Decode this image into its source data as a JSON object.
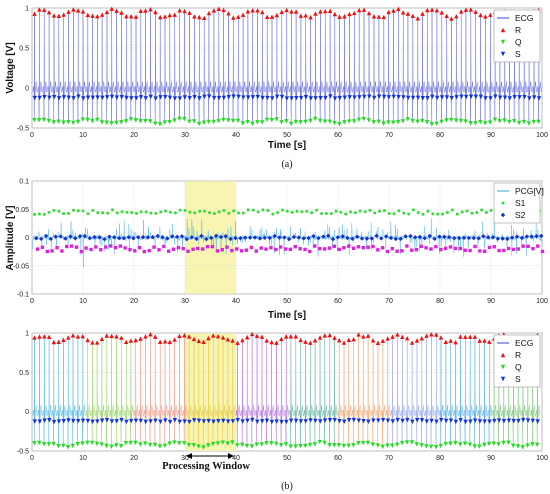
{
  "chart_data": [
    {
      "type": "line",
      "caption": "(a)",
      "xlabel": "Time [s]",
      "ylabel": "Voltage [V]",
      "xlim": [
        0,
        100
      ],
      "ylim": [
        -0.5,
        1
      ],
      "xticks": [
        "0",
        "10",
        "20",
        "30",
        "40",
        "50",
        "60",
        "70",
        "80",
        "90",
        "100"
      ],
      "yticks": [
        "-0.5",
        "0",
        "0.5",
        "1"
      ],
      "grid": true,
      "legend_position": "top-right",
      "beat_period_s": 0.95,
      "series": [
        {
          "name": "ECG",
          "kind": "line",
          "color": "#5b63d9"
        },
        {
          "name": "R",
          "kind": "markers",
          "marker": "triangle-up",
          "color": "#ee1111",
          "value": 0.93
        },
        {
          "name": "Q",
          "kind": "markers",
          "marker": "triangle-down",
          "color": "#22dd22",
          "value": -0.42
        },
        {
          "name": "S",
          "kind": "markers",
          "marker": "triangle-down",
          "color": "#1133dd",
          "value": -0.12
        }
      ]
    },
    {
      "type": "line",
      "xlabel": "Time [s]",
      "ylabel": "Amplitude [V]",
      "xlim": [
        0,
        100
      ],
      "ylim": [
        -0.1,
        0.1
      ],
      "xticks": [
        "0",
        "10",
        "20",
        "30",
        "40",
        "50",
        "60",
        "70",
        "80",
        "90",
        "100"
      ],
      "yticks": [
        "-0.1",
        "-0.05",
        "0",
        "0.05",
        "0.1"
      ],
      "grid": true,
      "legend_position": "top-right",
      "highlight_window": [
        30,
        40
      ],
      "series": [
        {
          "name": "PCG[V]",
          "kind": "line",
          "color": "#5ab4e6"
        },
        {
          "name": "S1",
          "kind": "markers",
          "marker": "circle",
          "color": "#33dd33",
          "value": 0.045
        },
        {
          "name": "S2",
          "kind": "markers",
          "marker": "diamond",
          "color": "#1133cc",
          "value": 0.0
        },
        {
          "name": "",
          "kind": "markers",
          "marker": "square",
          "color": "#dd22dd",
          "value": -0.02
        }
      ]
    },
    {
      "type": "line",
      "caption": "(b)",
      "xlabel": "Time [s]",
      "ylabel": "Voltage [V]",
      "xlim": [
        0,
        100
      ],
      "ylim": [
        -0.5,
        1
      ],
      "xticks": [
        "0",
        "10",
        "20",
        "30",
        "40",
        "50",
        "60",
        "70",
        "80",
        "90",
        "100"
      ],
      "yticks": [
        "-0.5",
        "0",
        "0.5",
        "1"
      ],
      "grid": true,
      "legend_position": "top-right",
      "highlight_window": [
        30,
        40
      ],
      "annotation": "Processing Window",
      "segment_colors": [
        "#46b4e0",
        "#8fcf5a",
        "#ef8f7a",
        "#e6c840",
        "#b06ad8",
        "#5ab0a0",
        "#ef9f66",
        "#8ea0ea",
        "#4aa8e6",
        "#6fc16f"
      ],
      "series": [
        {
          "name": "ECG",
          "kind": "line"
        },
        {
          "name": "R",
          "kind": "markers",
          "marker": "triangle-up",
          "color": "#ee1111",
          "value": 0.93
        },
        {
          "name": "Q",
          "kind": "markers",
          "marker": "triangle-down",
          "color": "#22dd22",
          "value": -0.42
        },
        {
          "name": "S",
          "kind": "markers",
          "marker": "triangle-down",
          "color": "#1133dd",
          "value": -0.12
        }
      ]
    }
  ]
}
